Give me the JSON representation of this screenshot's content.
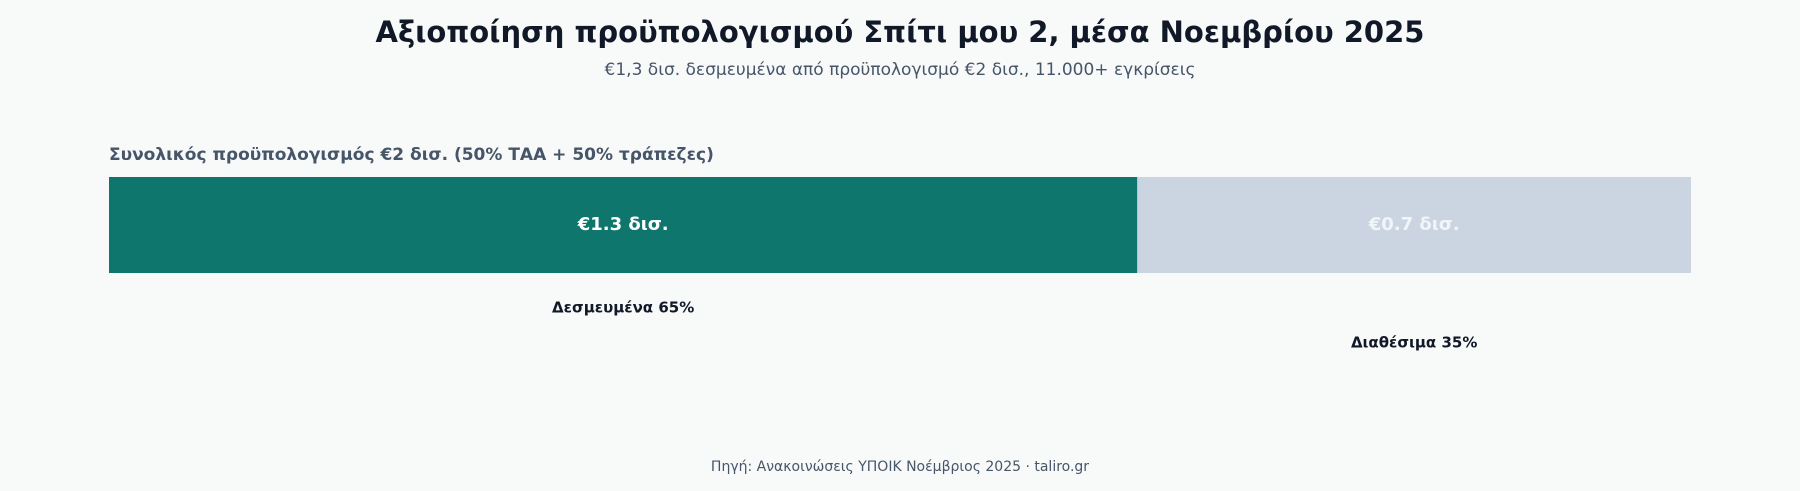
{
  "chart_data": {
    "type": "stacked-bar",
    "title": "Αξιοποίηση προϋπολογισμού Σπίτι μου 2, μέσα Νοεμβρίου 2025",
    "subtitle": "€1,3 δισ. δεσμευμένα από προϋπολογισμό €2 δισ., 11.000+ εγκρίσεις",
    "bar_label": "Συνολικός προϋπολογισμός €2 δισ. (50% ΤΑΑ + 50% τράπεζες)",
    "xlim": [
      0,
      2
    ],
    "series": [
      {
        "name": "Δεσμευμένα 65%",
        "color": "#0f766e",
        "values": [
          1.3
        ],
        "value_labels": [
          "€1.3 δισ."
        ]
      },
      {
        "name": "Διαθέσιμα 35%",
        "color": "#cbd5e1",
        "values": [
          0.7
        ],
        "value_labels": [
          "€0.7 δισ."
        ]
      }
    ],
    "source": "Πηγή: Ανακοινώσεις ΥΠΟΙΚ Νοέμβριος 2025 · taliro.gr"
  }
}
